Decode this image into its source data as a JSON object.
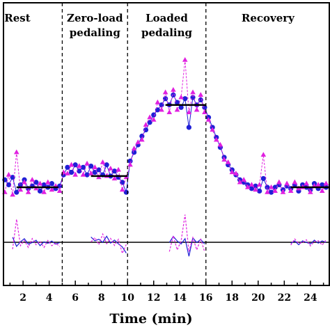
{
  "chart_data": {
    "type": "scatter",
    "xlabel": "Time (min)",
    "ylabel": "",
    "title": "",
    "xlim": [
      0.5,
      25.5
    ],
    "x_ticks": [
      2,
      4,
      6,
      8,
      10,
      12,
      14,
      16,
      18,
      20,
      22,
      24
    ],
    "grid": false,
    "phases": [
      {
        "label": "Rest",
        "start": 0,
        "end": 5
      },
      {
        "label": "Zero-load\npedaling",
        "start": 5,
        "end": 10
      },
      {
        "label": "Loaded\npedaling",
        "start": 10,
        "end": 16
      },
      {
        "label": "Recovery",
        "start": 16,
        "end": 25.5
      }
    ],
    "phase_boundaries": [
      5,
      10,
      16
    ],
    "steady_state_means": [
      {
        "x_start": 1.5,
        "x_end": 4.7,
        "y": 0.34
      },
      {
        "x_start": 7.2,
        "x_end": 10.0,
        "y": 0.43
      },
      {
        "x_start": 12.9,
        "x_end": 16.0,
        "y": 1.0
      },
      {
        "x_start": 22.5,
        "x_end": 25.5,
        "y": 0.34
      }
    ],
    "residual_baseline": -1.0,
    "series": [
      {
        "marker": "circle",
        "color": "#1f1fd6",
        "points": [
          [
            0.6,
            0.4
          ],
          [
            0.9,
            0.36
          ],
          [
            1.2,
            0.42
          ],
          [
            1.5,
            0.3
          ],
          [
            1.8,
            0.36
          ],
          [
            2.1,
            0.4
          ],
          [
            2.4,
            0.33
          ],
          [
            2.7,
            0.35
          ],
          [
            3.0,
            0.38
          ],
          [
            3.3,
            0.31
          ],
          [
            3.6,
            0.36
          ],
          [
            3.9,
            0.34
          ],
          [
            4.2,
            0.37
          ],
          [
            4.5,
            0.33
          ],
          [
            4.8,
            0.35
          ],
          [
            5.1,
            0.44
          ],
          [
            5.4,
            0.5
          ],
          [
            5.7,
            0.46
          ],
          [
            6.0,
            0.52
          ],
          [
            6.3,
            0.47
          ],
          [
            6.6,
            0.5
          ],
          [
            6.9,
            0.44
          ],
          [
            7.2,
            0.51
          ],
          [
            7.5,
            0.46
          ],
          [
            7.8,
            0.48
          ],
          [
            8.1,
            0.44
          ],
          [
            8.4,
            0.52
          ],
          [
            8.7,
            0.43
          ],
          [
            9.0,
            0.47
          ],
          [
            9.3,
            0.42
          ],
          [
            9.6,
            0.38
          ],
          [
            9.9,
            0.3
          ],
          [
            10.2,
            0.55
          ],
          [
            10.5,
            0.62
          ],
          [
            10.8,
            0.68
          ],
          [
            11.1,
            0.75
          ],
          [
            11.4,
            0.8
          ],
          [
            11.7,
            0.86
          ],
          [
            12.0,
            0.92
          ],
          [
            12.3,
            0.96
          ],
          [
            12.6,
            1.0
          ],
          [
            12.9,
            1.05
          ],
          [
            13.2,
            1.0
          ],
          [
            13.5,
            1.08
          ],
          [
            13.8,
            1.02
          ],
          [
            14.1,
            0.98
          ],
          [
            14.4,
            1.05
          ],
          [
            14.7,
            0.82
          ],
          [
            15.0,
            1.06
          ],
          [
            15.3,
            1.0
          ],
          [
            15.6,
            1.04
          ],
          [
            15.9,
            0.98
          ],
          [
            16.2,
            0.9
          ],
          [
            16.5,
            0.82
          ],
          [
            16.8,
            0.74
          ],
          [
            17.1,
            0.66
          ],
          [
            17.4,
            0.58
          ],
          [
            17.7,
            0.52
          ],
          [
            18.0,
            0.48
          ],
          [
            18.3,
            0.44
          ],
          [
            18.6,
            0.4
          ],
          [
            18.9,
            0.38
          ],
          [
            19.2,
            0.36
          ],
          [
            19.5,
            0.33
          ],
          [
            19.8,
            0.35
          ],
          [
            20.1,
            0.31
          ],
          [
            20.4,
            0.41
          ],
          [
            20.7,
            0.34
          ],
          [
            21.0,
            0.3
          ],
          [
            21.3,
            0.34
          ],
          [
            21.6,
            0.36
          ],
          [
            21.9,
            0.32
          ],
          [
            22.2,
            0.35
          ],
          [
            22.5,
            0.33
          ],
          [
            22.8,
            0.36
          ],
          [
            23.1,
            0.31
          ],
          [
            23.4,
            0.36
          ],
          [
            23.7,
            0.34
          ],
          [
            24.0,
            0.32
          ],
          [
            24.3,
            0.37
          ],
          [
            24.6,
            0.33
          ],
          [
            24.9,
            0.36
          ],
          [
            25.2,
            0.34
          ]
        ]
      },
      {
        "marker": "triangle",
        "color": "#e020e0",
        "points": [
          [
            0.6,
            0.3
          ],
          [
            0.9,
            0.44
          ],
          [
            1.2,
            0.28
          ],
          [
            1.5,
            0.62
          ],
          [
            1.8,
            0.32
          ],
          [
            2.1,
            0.38
          ],
          [
            2.4,
            0.3
          ],
          [
            2.7,
            0.4
          ],
          [
            3.0,
            0.33
          ],
          [
            3.3,
            0.37
          ],
          [
            3.6,
            0.3
          ],
          [
            3.9,
            0.38
          ],
          [
            4.2,
            0.32
          ],
          [
            4.5,
            0.35
          ],
          [
            4.8,
            0.31
          ],
          [
            5.1,
            0.46
          ],
          [
            5.4,
            0.45
          ],
          [
            5.7,
            0.52
          ],
          [
            6.0,
            0.44
          ],
          [
            6.3,
            0.51
          ],
          [
            6.6,
            0.44
          ],
          [
            6.9,
            0.53
          ],
          [
            7.2,
            0.45
          ],
          [
            7.5,
            0.5
          ],
          [
            7.8,
            0.42
          ],
          [
            8.1,
            0.54
          ],
          [
            8.4,
            0.43
          ],
          [
            8.7,
            0.49
          ],
          [
            9.0,
            0.41
          ],
          [
            9.3,
            0.48
          ],
          [
            9.6,
            0.32
          ],
          [
            9.9,
            0.42
          ],
          [
            10.2,
            0.52
          ],
          [
            10.5,
            0.65
          ],
          [
            10.8,
            0.7
          ],
          [
            11.1,
            0.72
          ],
          [
            11.4,
            0.84
          ],
          [
            11.7,
            0.9
          ],
          [
            12.0,
            0.88
          ],
          [
            12.3,
            1.02
          ],
          [
            12.6,
            0.96
          ],
          [
            12.9,
            1.1
          ],
          [
            13.2,
            0.94
          ],
          [
            13.5,
            1.12
          ],
          [
            13.8,
            0.96
          ],
          [
            14.1,
            1.06
          ],
          [
            14.4,
            1.36
          ],
          [
            14.7,
            0.94
          ],
          [
            15.0,
            1.1
          ],
          [
            15.3,
            0.96
          ],
          [
            15.6,
            1.08
          ],
          [
            15.9,
            0.94
          ],
          [
            16.2,
            0.88
          ],
          [
            16.5,
            0.8
          ],
          [
            16.8,
            0.72
          ],
          [
            17.1,
            0.68
          ],
          [
            17.4,
            0.56
          ],
          [
            17.7,
            0.54
          ],
          [
            18.0,
            0.46
          ],
          [
            18.3,
            0.45
          ],
          [
            18.6,
            0.38
          ],
          [
            18.9,
            0.4
          ],
          [
            19.2,
            0.34
          ],
          [
            19.5,
            0.36
          ],
          [
            19.8,
            0.32
          ],
          [
            20.1,
            0.36
          ],
          [
            20.4,
            0.6
          ],
          [
            20.7,
            0.3
          ],
          [
            21.0,
            0.34
          ],
          [
            21.3,
            0.31
          ],
          [
            21.6,
            0.38
          ],
          [
            21.9,
            0.3
          ],
          [
            22.2,
            0.37
          ],
          [
            22.5,
            0.31
          ],
          [
            22.8,
            0.38
          ],
          [
            23.1,
            0.33
          ],
          [
            23.4,
            0.34
          ],
          [
            23.7,
            0.37
          ],
          [
            24.0,
            0.3
          ],
          [
            24.3,
            0.35
          ],
          [
            24.6,
            0.36
          ],
          [
            24.9,
            0.31
          ],
          [
            25.2,
            0.37
          ]
        ]
      }
    ]
  },
  "colors": {
    "circle_series": "#1f1fd6",
    "triangle_series": "#e020e0",
    "axis": "#000000"
  }
}
